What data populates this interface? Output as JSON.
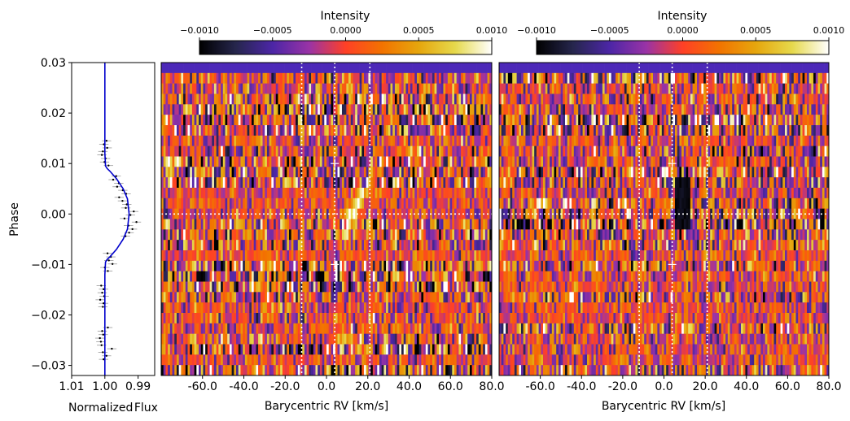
{
  "chart_data": [
    {
      "type": "line",
      "panel": "light-curve",
      "xlabel": "Normalized Flux",
      "ylabel": "Phase",
      "xlim": [
        1.01,
        0.985
      ],
      "ylim": [
        -0.032,
        0.03
      ],
      "xtick_values": [
        1.01,
        1.0,
        0.99
      ],
      "xtick_labels": [
        "1.01",
        "1.00",
        "0.99"
      ],
      "ytick_values": [
        0.03,
        0.02,
        0.01,
        0.0,
        -0.01,
        -0.02,
        -0.03
      ],
      "ytick_labels": [
        "0.03",
        "0.02",
        "0.01",
        "0.00",
        "−0.01",
        "−0.02",
        "−0.03"
      ],
      "model": {
        "name": "transit model",
        "color": "#0000cc",
        "phase": [
          0.03,
          0.012,
          0.0095,
          0.009,
          0.0085,
          0.007,
          0.005,
          0.003,
          0.0,
          -0.003,
          -0.005,
          -0.007,
          -0.0085,
          -0.009,
          -0.0095,
          -0.012,
          -0.032
        ],
        "flux": [
          1.0,
          1.0,
          0.9998,
          0.9993,
          0.9985,
          0.9965,
          0.9945,
          0.9932,
          0.9927,
          0.9932,
          0.9945,
          0.9965,
          0.9985,
          0.9993,
          0.9998,
          1.0,
          1.0
        ]
      },
      "observations": {
        "name": "flux measurements",
        "color": "#000000",
        "error_color": "#999999",
        "flux_error": 0.0014,
        "phase": [
          0.0145,
          0.0138,
          0.0131,
          0.0124,
          0.0117,
          0.011,
          0.0103,
          0.0096,
          0.0075,
          0.0068,
          0.0061,
          0.0054,
          0.0047,
          0.004,
          0.0033,
          0.0026,
          0.0019,
          0.0012,
          0.0005,
          -0.0002,
          -0.0009,
          -0.0016,
          -0.0023,
          -0.003,
          -0.0037,
          -0.0044,
          -0.0078,
          -0.0085,
          -0.0092,
          -0.0099,
          -0.0106,
          -0.0113,
          -0.0142,
          -0.0149,
          -0.0156,
          -0.0163,
          -0.017,
          -0.0177,
          -0.0184,
          -0.0225,
          -0.0232,
          -0.0239,
          -0.0246,
          -0.0253,
          -0.026,
          -0.0267,
          -0.0274,
          -0.0281,
          -0.0288
        ],
        "flux": [
          0.9995,
          1.0003,
          0.9993,
          1.0006,
          1.0009,
          0.9998,
          1.0001,
          0.9989,
          0.9966,
          0.9975,
          0.9958,
          0.9963,
          0.9946,
          0.9936,
          0.9957,
          0.9947,
          0.9934,
          0.9937,
          0.9913,
          0.9923,
          0.9941,
          0.9905,
          0.9929,
          0.9917,
          0.9927,
          0.9938,
          0.9992,
          0.9982,
          0.9988,
          0.9977,
          1.0,
          0.9991,
          1.0011,
          1.0004,
          1.0008,
          1.0002,
          1.0014,
          1.0004,
          1.0006,
          0.9991,
          1.0008,
          1.0005,
          1.0015,
          1.0012,
          1.001,
          0.9979,
          1.0006,
          0.9995,
          1.0004
        ]
      }
    },
    {
      "type": "heatmap",
      "panel": "observed-residuals",
      "title": "Intensity",
      "xlabel": "Barycentric RV [km/s]",
      "xlim": [
        -80,
        80
      ],
      "ylim": [
        -0.032,
        0.03
      ],
      "xtick_values": [
        -60,
        -40,
        -20,
        0,
        20,
        40,
        60,
        80
      ],
      "xtick_labels": [
        "-60.0",
        "-40.0",
        "-20.0",
        "0.0",
        "20.0",
        "40.0",
        "60.0",
        "80.0"
      ],
      "colorbar": {
        "label": "Intensity",
        "colormap": "CMRmap",
        "range": [
          -0.001,
          0.001
        ],
        "tick_values": [
          -0.001,
          -0.0005,
          0.0,
          0.0005,
          0.001
        ],
        "tick_labels": [
          "−0.0010",
          "−0.0005",
          "0.0000",
          "0.0005",
          "0.0010"
        ]
      },
      "vertical_lines_rv": [
        -12,
        4,
        21
      ],
      "horizontal_line_phase": 0.0,
      "contact_markers": [
        {
          "rv": 4,
          "phase": 0.01
        },
        {
          "rv": 4,
          "phase": -0.01
        }
      ],
      "n_exposures": 30,
      "top_masked_rows": 1,
      "rv_bins": 150,
      "planet_track": {
        "rv_start": 8,
        "phase_start": -0.005,
        "rv_end": 20,
        "phase_end": 0.007,
        "amplitude": 0.0009
      },
      "random_seed": 11
    },
    {
      "type": "heatmap",
      "panel": "model-subtracted-residuals",
      "title": "Intensity",
      "xlabel": "Barycentric RV [km/s]",
      "xlim": [
        -80,
        80
      ],
      "ylim": [
        -0.032,
        0.03
      ],
      "xtick_values": [
        -60,
        -40,
        -20,
        0,
        20,
        40,
        60,
        80
      ],
      "xtick_labels": [
        "-60.0",
        "-40.0",
        "-20.0",
        "0.0",
        "20.0",
        "40.0",
        "60.0",
        "80.0"
      ],
      "colorbar": {
        "label": "Intensity",
        "colormap": "CMRmap",
        "range": [
          -0.001,
          0.001
        ],
        "tick_values": [
          -0.001,
          -0.0005,
          0.0,
          0.0005,
          0.001
        ],
        "tick_labels": [
          "−0.0010",
          "−0.0005",
          "0.0000",
          "0.0005",
          "0.0010"
        ]
      },
      "vertical_lines_rv": [
        -12,
        4,
        21
      ],
      "horizontal_line_phase": 0.0,
      "contact_markers": [
        {
          "rv": 4,
          "phase": 0.01
        },
        {
          "rv": 4,
          "phase": -0.01
        }
      ],
      "n_exposures": 30,
      "top_masked_rows": 1,
      "rv_bins": 150,
      "masked_region": {
        "rv_min": 5,
        "rv_max": 13,
        "phase_min": -0.003,
        "phase_max": 0.008
      },
      "random_seed": 23
    }
  ]
}
